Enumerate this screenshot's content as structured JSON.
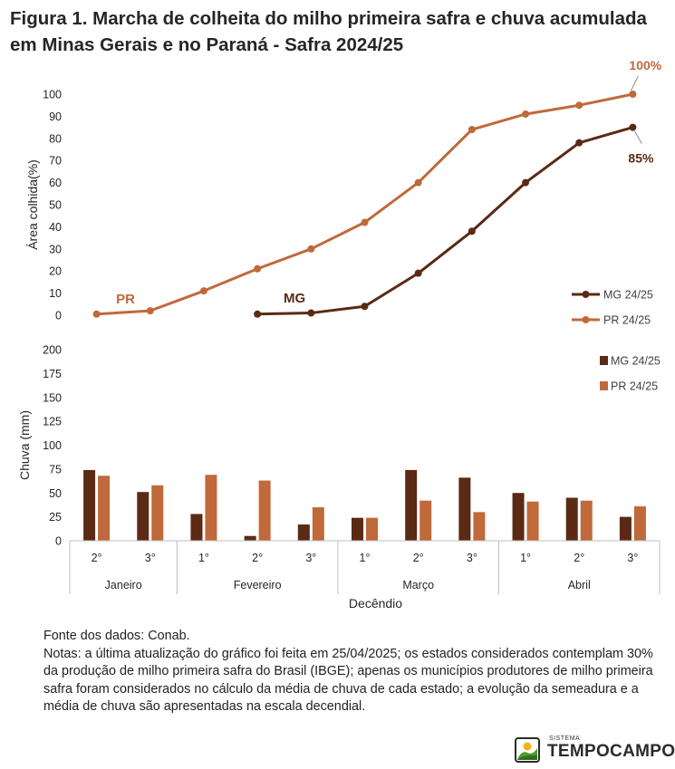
{
  "title": {
    "line1": "Figura 1. Marcha  de colheita do milho primeira safra  e chuva acumulada",
    "line2": "em Minas Gerais e no Paraná  - Safra 2024/25"
  },
  "colors": {
    "mg": "#5a2a14",
    "pr": "#c0693a",
    "axis": "#bfbfbf",
    "text": "#262626"
  },
  "x_axis": {
    "ticks": [
      "2°",
      "3°",
      "1°",
      "2°",
      "3°",
      "1°",
      "2°",
      "3°",
      "1°",
      "2°",
      "3°"
    ],
    "months": [
      "Janeiro",
      "Fevereiro",
      "Março",
      "Abril"
    ],
    "month_spans": [
      [
        0,
        2
      ],
      [
        2,
        5
      ],
      [
        5,
        8
      ],
      [
        8,
        11
      ]
    ],
    "title": "Decêndio"
  },
  "chart_data": [
    {
      "type": "line",
      "ylabel": "Área colhida(%)",
      "ylim": [
        0,
        100
      ],
      "yticks": [
        "0",
        "10",
        "20",
        "30",
        "40",
        "50",
        "60",
        "70",
        "80",
        "90",
        "100"
      ],
      "ytick_values": [
        0,
        10,
        20,
        30,
        40,
        50,
        60,
        70,
        80,
        90,
        100
      ],
      "legend_position": "bottom-right",
      "series": [
        {
          "name": "MG 24/25",
          "color": "#5a2a14",
          "values": [
            null,
            null,
            null,
            0.5,
            1,
            4,
            19,
            38,
            60,
            78,
            85
          ]
        },
        {
          "name": "PR 24/25",
          "color": "#c0693a",
          "values": [
            0.5,
            2,
            11,
            21,
            30,
            42,
            60,
            84,
            91,
            95,
            100
          ]
        }
      ],
      "annotations": [
        {
          "text": "PR",
          "series": "PR 24/25"
        },
        {
          "text": "MG",
          "series": "MG 24/25"
        },
        {
          "text": "100%",
          "series": "PR 24/25"
        },
        {
          "text": "85%",
          "series": "MG 24/25"
        }
      ]
    },
    {
      "type": "bar",
      "ylabel": "Chuva (mm)",
      "ylim": [
        0,
        200
      ],
      "yticks": [
        "0",
        "25",
        "50",
        "75",
        "100",
        "125",
        "150",
        "175",
        "200"
      ],
      "ytick_values": [
        0,
        25,
        50,
        75,
        100,
        125,
        150,
        175,
        200
      ],
      "legend_position": "top-right",
      "series": [
        {
          "name": "MG 24/25",
          "color": "#5a2a14",
          "values": [
            74,
            51,
            28,
            5,
            17,
            24,
            74,
            66,
            50,
            45,
            25
          ]
        },
        {
          "name": "PR 24/25",
          "color": "#c0693a",
          "values": [
            68,
            58,
            69,
            63,
            35,
            24,
            42,
            30,
            41,
            42,
            36
          ]
        }
      ]
    }
  ],
  "notes": {
    "source": "Fonte dos dados: Conab.",
    "text": "Notas: a última atualização do gráfico foi feita em 25/04/2025; os estados considerados contemplam 30% da produção de milho primeira safra do Brasil (IBGE); apenas os municípios produtores de milho primeira safra foram considerados no cálculo da média de chuva de cada estado; a evolução da semeadura e a média de chuva são apresentadas na escala decendial."
  },
  "logo": {
    "small_text": "SISTEMA",
    "big_text": "TEMPOCAMPO"
  }
}
